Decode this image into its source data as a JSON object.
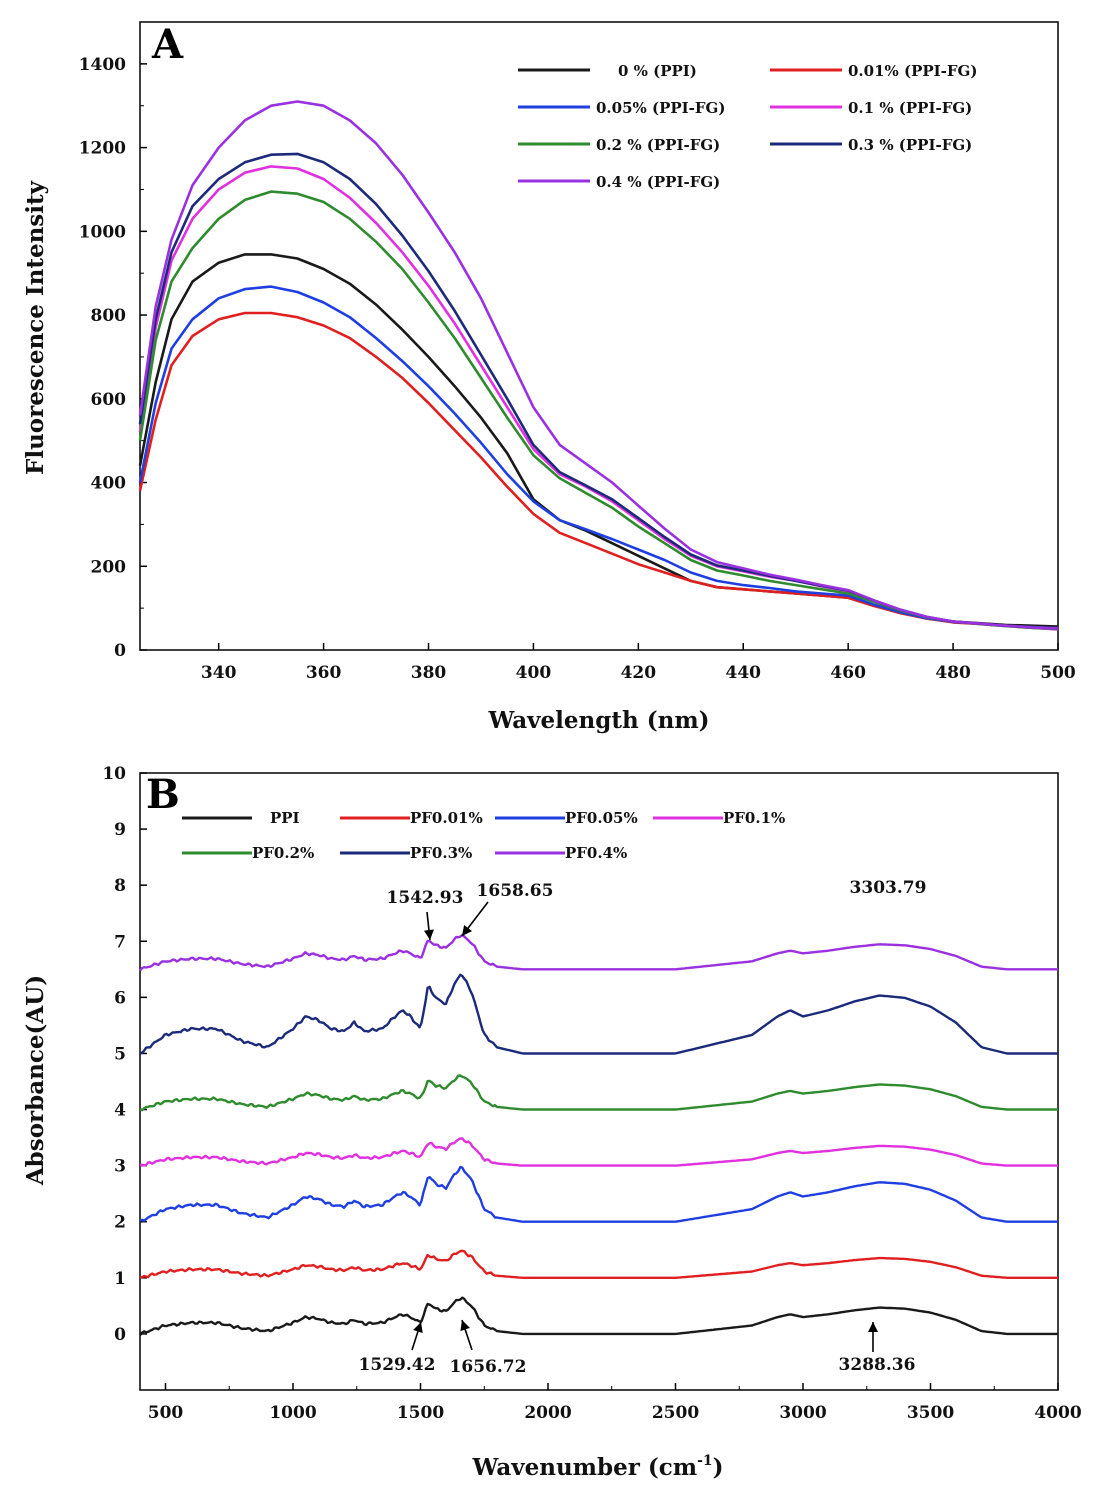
{
  "chart_data": [
    {
      "panel_label": "A",
      "type": "line",
      "title": "",
      "xlabel": "Wavelength (nm)",
      "ylabel": "Fluorescence Intensity",
      "xlim": [
        325,
        500
      ],
      "ylim": [
        0,
        1500
      ],
      "xticks": [
        "340",
        "360",
        "380",
        "400",
        "420",
        "440",
        "460",
        "480",
        "500"
      ],
      "yticks": [
        "0",
        "200",
        "400",
        "600",
        "800",
        "1000",
        "1200",
        "1400"
      ],
      "legend_position": "top-right",
      "series": [
        {
          "name": "0  %    (PPI)",
          "color": "#1a1a1a",
          "x": [
            325,
            328,
            331,
            335,
            340,
            345,
            350,
            355,
            360,
            365,
            370,
            375,
            380,
            385,
            390,
            395,
            400,
            405,
            410,
            415,
            420,
            425,
            430,
            435,
            440,
            445,
            450,
            455,
            460,
            465,
            470,
            475,
            480,
            485,
            490,
            495,
            500
          ],
          "y": [
            440,
            640,
            790,
            880,
            925,
            945,
            945,
            935,
            910,
            875,
            825,
            765,
            700,
            630,
            555,
            470,
            360,
            310,
            285,
            255,
            225,
            195,
            165,
            150,
            145,
            140,
            135,
            130,
            125,
            105,
            90,
            75,
            68,
            64,
            60,
            58,
            56
          ]
        },
        {
          "name": "0.01% (PPI-FG)",
          "color": "#e02020",
          "x": [
            325,
            328,
            331,
            335,
            340,
            345,
            350,
            355,
            360,
            365,
            370,
            375,
            380,
            385,
            390,
            395,
            400,
            405,
            410,
            415,
            420,
            425,
            430,
            435,
            440,
            445,
            450,
            455,
            460,
            465,
            470,
            475,
            480,
            485,
            490,
            495,
            500
          ],
          "y": [
            380,
            550,
            680,
            750,
            790,
            805,
            805,
            795,
            775,
            745,
            700,
            650,
            590,
            525,
            460,
            390,
            325,
            280,
            255,
            230,
            205,
            185,
            165,
            150,
            145,
            140,
            135,
            130,
            125,
            105,
            88,
            75,
            66,
            62,
            58,
            55,
            52
          ]
        },
        {
          "name": "0.05% (PPI-FG)",
          "color": "#1f3fe0",
          "x": [
            325,
            328,
            331,
            335,
            340,
            345,
            350,
            355,
            360,
            365,
            370,
            375,
            380,
            385,
            390,
            395,
            400,
            405,
            410,
            415,
            420,
            425,
            430,
            435,
            440,
            445,
            450,
            455,
            460,
            465,
            470,
            475,
            480,
            485,
            490,
            495,
            500
          ],
          "y": [
            400,
            590,
            720,
            790,
            840,
            862,
            868,
            855,
            830,
            795,
            745,
            690,
            630,
            565,
            495,
            420,
            355,
            310,
            288,
            265,
            240,
            215,
            185,
            165,
            155,
            148,
            140,
            135,
            130,
            108,
            90,
            76,
            67,
            63,
            58,
            55,
            52
          ]
        },
        {
          "name": "0.1  % (PPI-FG)",
          "color": "#e030e0",
          "x": [
            325,
            328,
            331,
            335,
            340,
            345,
            350,
            355,
            360,
            365,
            370,
            375,
            380,
            385,
            390,
            395,
            400,
            405,
            410,
            415,
            420,
            425,
            430,
            435,
            440,
            445,
            450,
            455,
            460,
            465,
            470,
            475,
            480,
            485,
            490,
            495,
            500
          ],
          "y": [
            520,
            770,
            930,
            1030,
            1100,
            1140,
            1155,
            1150,
            1125,
            1080,
            1020,
            950,
            870,
            780,
            680,
            580,
            480,
            420,
            390,
            355,
            310,
            265,
            225,
            200,
            188,
            175,
            165,
            152,
            140,
            118,
            96,
            78,
            68,
            62,
            57,
            53,
            49
          ]
        },
        {
          "name": "0.2 % (PPI-FG)",
          "color": "#2e8b2e",
          "x": [
            325,
            328,
            331,
            335,
            340,
            345,
            350,
            355,
            360,
            365,
            370,
            375,
            380,
            385,
            390,
            395,
            400,
            405,
            410,
            415,
            420,
            425,
            430,
            435,
            440,
            445,
            450,
            455,
            460,
            465,
            470,
            475,
            480,
            485,
            490,
            495,
            500
          ],
          "y": [
            500,
            740,
            880,
            960,
            1030,
            1075,
            1095,
            1090,
            1070,
            1030,
            975,
            910,
            830,
            745,
            650,
            555,
            465,
            410,
            375,
            340,
            295,
            255,
            215,
            190,
            178,
            165,
            155,
            145,
            135,
            115,
            94,
            78,
            68,
            62,
            57,
            53,
            50
          ]
        },
        {
          "name": "0.3 % (PPI-FG)",
          "color": "#1c2a7a",
          "x": [
            325,
            328,
            331,
            335,
            340,
            345,
            350,
            355,
            360,
            365,
            370,
            375,
            380,
            385,
            390,
            395,
            400,
            405,
            410,
            415,
            420,
            425,
            430,
            435,
            440,
            445,
            450,
            455,
            460,
            465,
            470,
            475,
            480,
            485,
            490,
            495,
            500
          ],
          "y": [
            540,
            790,
            950,
            1060,
            1125,
            1165,
            1183,
            1185,
            1165,
            1125,
            1065,
            990,
            905,
            810,
            705,
            600,
            490,
            425,
            393,
            360,
            315,
            270,
            228,
            202,
            190,
            177,
            165,
            153,
            142,
            118,
            96,
            79,
            68,
            63,
            58,
            54,
            51
          ]
        },
        {
          "name": "0.4 % (PPI-FG)",
          "color": "#9b30e0",
          "x": [
            325,
            328,
            331,
            335,
            340,
            345,
            350,
            355,
            360,
            365,
            370,
            375,
            380,
            385,
            390,
            395,
            400,
            405,
            410,
            415,
            420,
            425,
            430,
            435,
            440,
            445,
            450,
            455,
            460,
            465,
            470,
            475,
            480,
            485,
            490,
            495,
            500
          ],
          "y": [
            560,
            820,
            980,
            1110,
            1200,
            1265,
            1300,
            1310,
            1300,
            1265,
            1210,
            1135,
            1045,
            950,
            840,
            710,
            580,
            490,
            445,
            400,
            345,
            290,
            240,
            210,
            195,
            180,
            168,
            155,
            143,
            118,
            96,
            79,
            68,
            63,
            58,
            54,
            51
          ]
        }
      ]
    },
    {
      "panel_label": "B",
      "type": "line",
      "title": "",
      "xlabel": "Wavenumber (cm",
      "xlabel_superscript": "-1",
      "xlabel_close": ")",
      "ylabel": "Absorbance(AU)",
      "xlim": [
        400,
        4000
      ],
      "ylim": [
        -1,
        10
      ],
      "xticks": [
        "500",
        "1000",
        "1500",
        "2000",
        "2500",
        "3000",
        "3500",
        "4000"
      ],
      "yticks": [
        "0",
        "1",
        "2",
        "3",
        "4",
        "5",
        "6",
        "7",
        "8",
        "9",
        "10"
      ],
      "legend_position": "top-left",
      "annotations": [
        {
          "text": "1542.93",
          "x": 1542.93
        },
        {
          "text": "1658.65",
          "x": 1658.65
        },
        {
          "text": "3303.79",
          "x": 3303.79
        },
        {
          "text": "1529.42",
          "x": 1529.42
        },
        {
          "text": "1656.72",
          "x": 1656.72
        },
        {
          "text": "3288.36",
          "x": 3288.36
        }
      ],
      "series": [
        {
          "name": "PPI",
          "color": "#1a1a1a",
          "baseline": 0,
          "scale": 1.0
        },
        {
          "name": "PF0.01%",
          "color": "#e02020",
          "baseline": 1,
          "scale": 0.75
        },
        {
          "name": "PF0.05%",
          "color": "#1f3fe0",
          "baseline": 2,
          "scale": 1.5
        },
        {
          "name": "PF0.1%",
          "color": "#e030e0",
          "baseline": 3,
          "scale": 0.75
        },
        {
          "name": "PF0.2%",
          "color": "#2e8b2e",
          "baseline": 4,
          "scale": 0.95
        },
        {
          "name": "PF0.3%",
          "color": "#1c2a7a",
          "baseline": 5,
          "scale": 2.2
        },
        {
          "name": "PF0.4%",
          "color": "#9b30e0",
          "baseline": 6.5,
          "scale": 0.95
        }
      ],
      "profile": {
        "x": [
          400,
          500,
          600,
          700,
          800,
          900,
          1000,
          1050,
          1100,
          1150,
          1200,
          1240,
          1280,
          1350,
          1400,
          1430,
          1460,
          1500,
          1530,
          1560,
          1600,
          1630,
          1660,
          1700,
          1750,
          1800,
          1900,
          2000,
          2500,
          2800,
          2900,
          2950,
          3000,
          3100,
          3200,
          3300,
          3400,
          3500,
          3600,
          3700,
          3800,
          4000
        ],
        "y": [
          0,
          0.15,
          0.2,
          0.2,
          0.1,
          0.05,
          0.2,
          0.3,
          0.27,
          0.2,
          0.18,
          0.25,
          0.18,
          0.2,
          0.3,
          0.35,
          0.3,
          0.2,
          0.55,
          0.45,
          0.4,
          0.55,
          0.65,
          0.5,
          0.15,
          0.05,
          0,
          0,
          0,
          0.15,
          0.3,
          0.35,
          0.3,
          0.35,
          0.42,
          0.47,
          0.45,
          0.38,
          0.25,
          0.05,
          0,
          0
        ]
      }
    }
  ]
}
